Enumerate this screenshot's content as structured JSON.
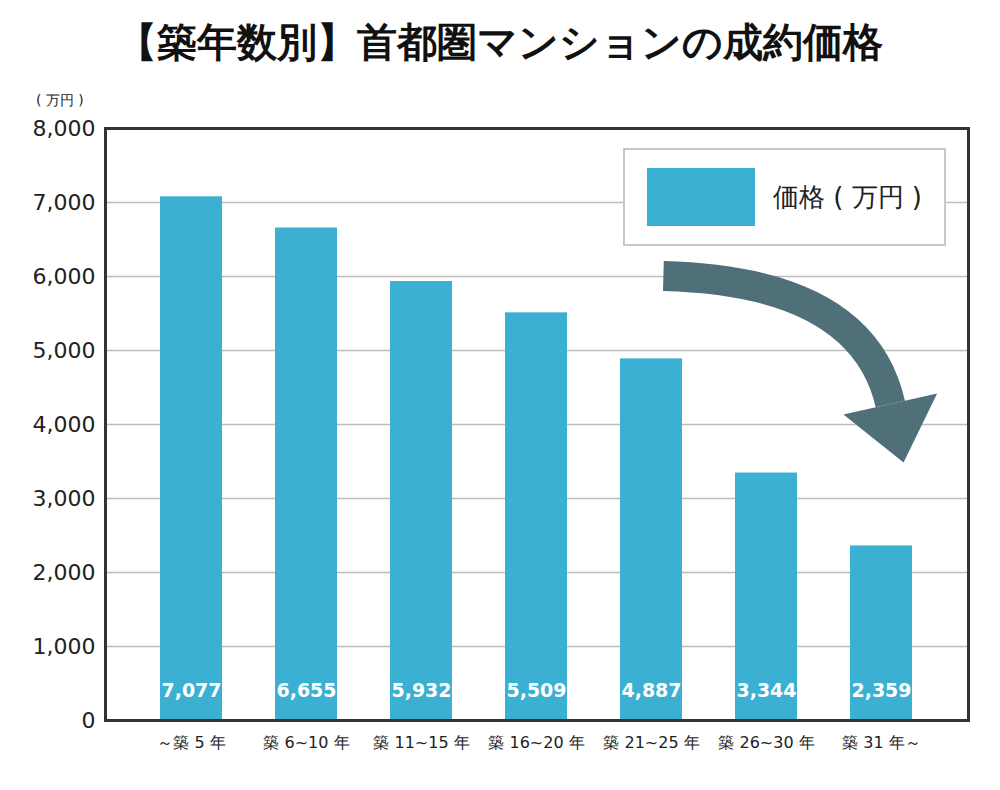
{
  "chart_data": {
    "type": "bar",
    "title": "【築年数別】首都圏マンションの成約価格",
    "y_label": "( 万円 )",
    "categories": [
      "～築 5 年",
      "築 6~10 年",
      "築 11~15 年",
      "築 16~20 年",
      "築 21~25 年",
      "築 26~30 年",
      "築 31 年～"
    ],
    "series": [
      {
        "name": "価格 ( 万円 )",
        "color": "#3cb0d3",
        "values": [
          7077,
          6655,
          5932,
          5509,
          4887,
          3344,
          2359
        ],
        "value_labels": [
          "7,077",
          "6,655",
          "5,932",
          "5,509",
          "4,887",
          "3,344",
          "2,359"
        ]
      }
    ],
    "ylim": [
      0,
      8000
    ],
    "yticks": [
      0,
      1000,
      2000,
      3000,
      4000,
      5000,
      6000,
      7000,
      8000
    ],
    "grid": true,
    "legend": "top-right",
    "data_labels": true
  }
}
